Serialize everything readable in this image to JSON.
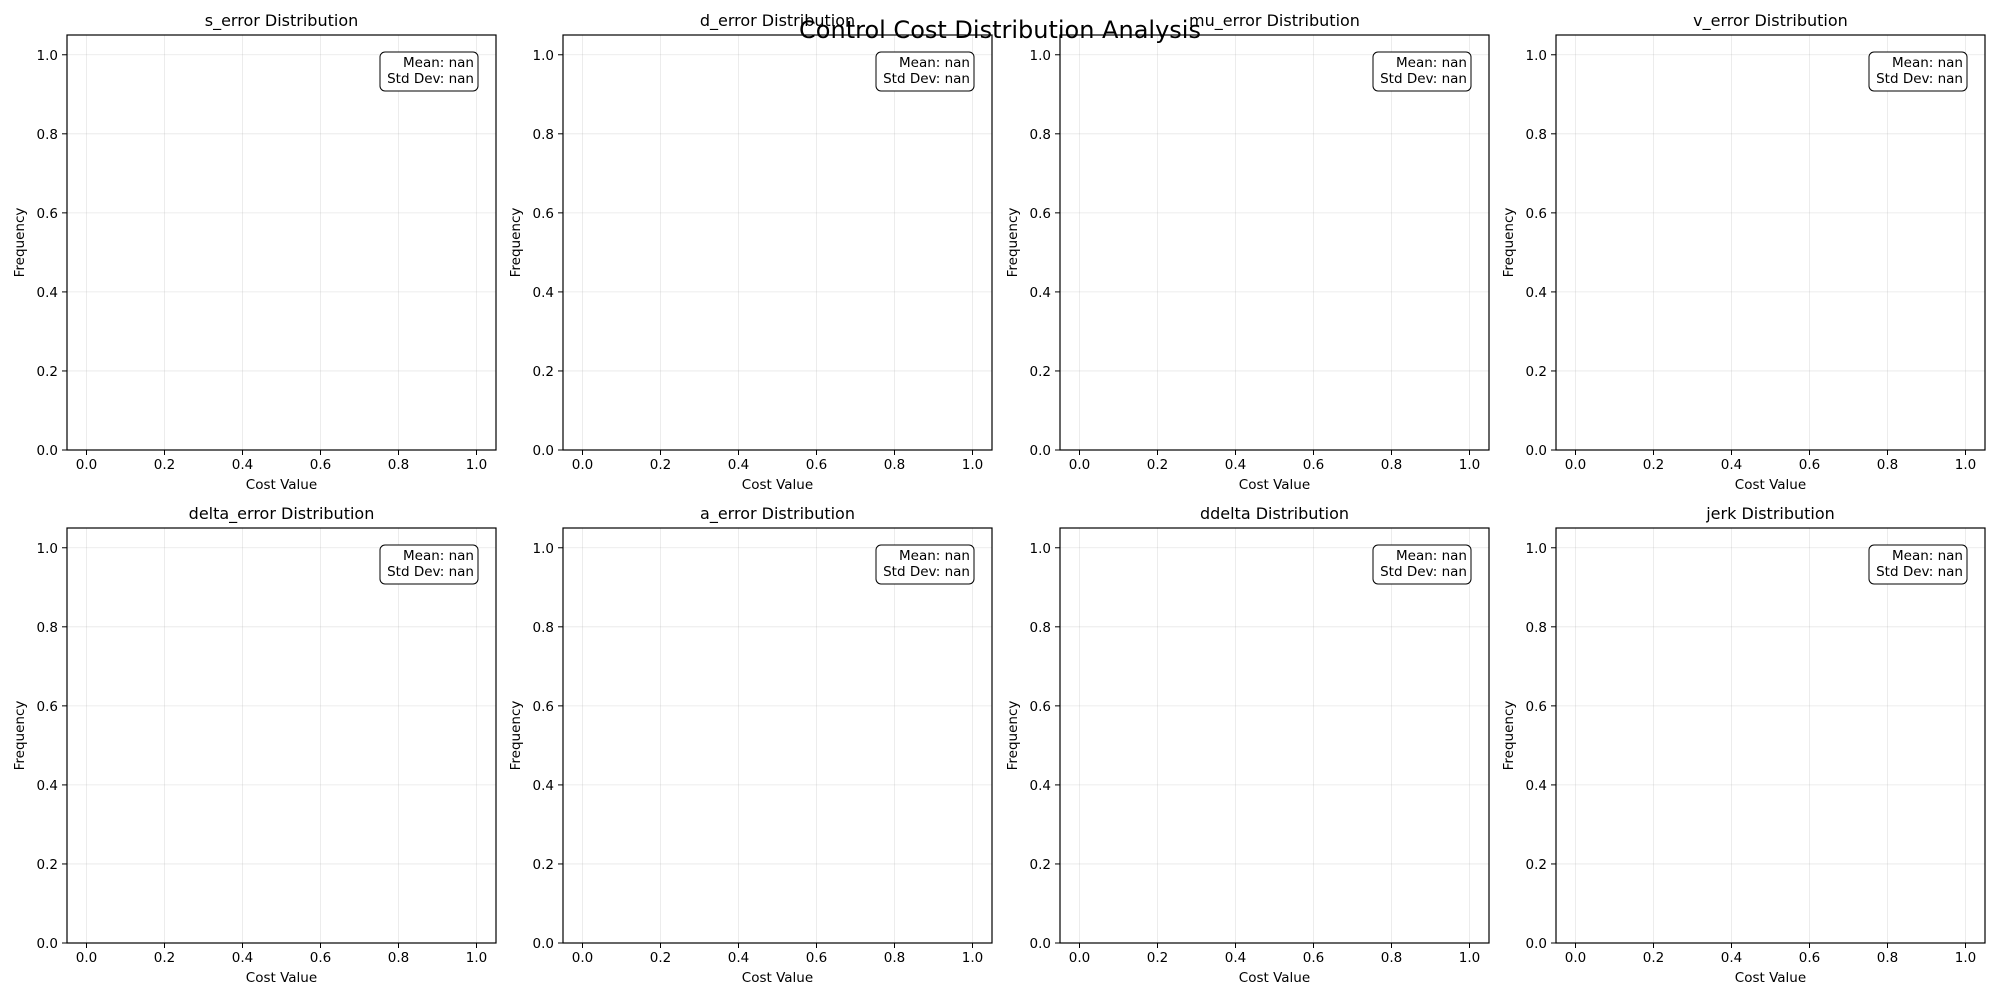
{
  "figure": {
    "suptitle": "Control Cost Distribution Analysis"
  },
  "chart_data": [
    {
      "type": "bar",
      "title": "s_error Distribution",
      "xlabel": "Cost Value",
      "ylabel": "Frequency",
      "xlim": [
        -0.05,
        1.05
      ],
      "ylim": [
        0,
        1.05
      ],
      "xticks": [
        "0.0",
        "0.2",
        "0.4",
        "0.6",
        "0.8",
        "1.0"
      ],
      "yticks": [
        "0.0",
        "0.2",
        "0.4",
        "0.6",
        "0.8",
        "1.0"
      ],
      "grid": true,
      "values": [],
      "stats_box": {
        "lines": [
          "Mean: nan",
          "Std Dev: nan"
        ],
        "placement": "top-right"
      }
    },
    {
      "type": "bar",
      "title": "d_error Distribution",
      "xlabel": "Cost Value",
      "ylabel": "Frequency",
      "xlim": [
        -0.05,
        1.05
      ],
      "ylim": [
        0,
        1.05
      ],
      "xticks": [
        "0.0",
        "0.2",
        "0.4",
        "0.6",
        "0.8",
        "1.0"
      ],
      "yticks": [
        "0.0",
        "0.2",
        "0.4",
        "0.6",
        "0.8",
        "1.0"
      ],
      "grid": true,
      "values": [],
      "stats_box": {
        "lines": [
          "Mean: nan",
          "Std Dev: nan"
        ],
        "placement": "top-right"
      }
    },
    {
      "type": "bar",
      "title": "mu_error Distribution",
      "xlabel": "Cost Value",
      "ylabel": "Frequency",
      "xlim": [
        -0.05,
        1.05
      ],
      "ylim": [
        0,
        1.05
      ],
      "xticks": [
        "0.0",
        "0.2",
        "0.4",
        "0.6",
        "0.8",
        "1.0"
      ],
      "yticks": [
        "0.0",
        "0.2",
        "0.4",
        "0.6",
        "0.8",
        "1.0"
      ],
      "grid": true,
      "values": [],
      "stats_box": {
        "lines": [
          "Mean: nan",
          "Std Dev: nan"
        ],
        "placement": "top-right"
      }
    },
    {
      "type": "bar",
      "title": "v_error Distribution",
      "xlabel": "Cost Value",
      "ylabel": "Frequency",
      "xlim": [
        -0.05,
        1.05
      ],
      "ylim": [
        0,
        1.05
      ],
      "xticks": [
        "0.0",
        "0.2",
        "0.4",
        "0.6",
        "0.8",
        "1.0"
      ],
      "yticks": [
        "0.0",
        "0.2",
        "0.4",
        "0.6",
        "0.8",
        "1.0"
      ],
      "grid": true,
      "values": [],
      "stats_box": {
        "lines": [
          "Mean: nan",
          "Std Dev: nan"
        ],
        "placement": "top-right"
      }
    },
    {
      "type": "bar",
      "title": "delta_error Distribution",
      "xlabel": "Cost Value",
      "ylabel": "Frequency",
      "xlim": [
        -0.05,
        1.05
      ],
      "ylim": [
        0,
        1.05
      ],
      "xticks": [
        "0.0",
        "0.2",
        "0.4",
        "0.6",
        "0.8",
        "1.0"
      ],
      "yticks": [
        "0.0",
        "0.2",
        "0.4",
        "0.6",
        "0.8",
        "1.0"
      ],
      "grid": true,
      "values": [],
      "stats_box": {
        "lines": [
          "Mean: nan",
          "Std Dev: nan"
        ],
        "placement": "top-right"
      }
    },
    {
      "type": "bar",
      "title": "a_error Distribution",
      "xlabel": "Cost Value",
      "ylabel": "Frequency",
      "xlim": [
        -0.05,
        1.05
      ],
      "ylim": [
        0,
        1.05
      ],
      "xticks": [
        "0.0",
        "0.2",
        "0.4",
        "0.6",
        "0.8",
        "1.0"
      ],
      "yticks": [
        "0.0",
        "0.2",
        "0.4",
        "0.6",
        "0.8",
        "1.0"
      ],
      "grid": true,
      "values": [],
      "stats_box": {
        "lines": [
          "Mean: nan",
          "Std Dev: nan"
        ],
        "placement": "top-right"
      }
    },
    {
      "type": "bar",
      "title": "ddelta Distribution",
      "xlabel": "Cost Value",
      "ylabel": "Frequency",
      "xlim": [
        -0.05,
        1.05
      ],
      "ylim": [
        0,
        1.05
      ],
      "xticks": [
        "0.0",
        "0.2",
        "0.4",
        "0.6",
        "0.8",
        "1.0"
      ],
      "yticks": [
        "0.0",
        "0.2",
        "0.4",
        "0.6",
        "0.8",
        "1.0"
      ],
      "grid": true,
      "values": [],
      "stats_box": {
        "lines": [
          "Mean: nan",
          "Std Dev: nan"
        ],
        "placement": "top-right"
      }
    },
    {
      "type": "bar",
      "title": "jerk Distribution",
      "xlabel": "Cost Value",
      "ylabel": "Frequency",
      "xlim": [
        -0.05,
        1.05
      ],
      "ylim": [
        0,
        1.05
      ],
      "xticks": [
        "0.0",
        "0.2",
        "0.4",
        "0.6",
        "0.8",
        "1.0"
      ],
      "yticks": [
        "0.0",
        "0.2",
        "0.4",
        "0.6",
        "0.8",
        "1.0"
      ],
      "grid": true,
      "values": [],
      "stats_box": {
        "lines": [
          "Mean: nan",
          "Std Dev: nan"
        ],
        "placement": "top-right"
      }
    }
  ]
}
